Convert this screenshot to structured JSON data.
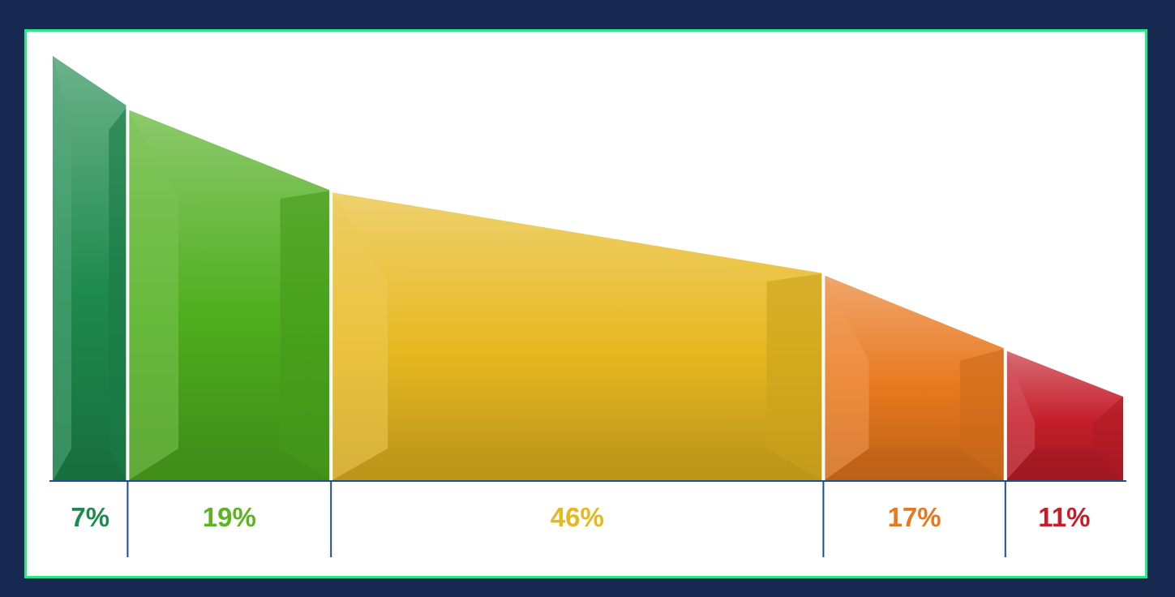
{
  "chart_data": {
    "type": "bar",
    "categories": [
      "7%",
      "19%",
      "46%",
      "17%",
      "11%"
    ],
    "values": [
      7,
      19,
      46,
      17,
      11
    ],
    "shares": [
      0.07,
      0.19,
      0.46,
      0.17,
      0.11
    ],
    "colors": [
      "#1e8a4e",
      "#4fae1e",
      "#e6b820",
      "#e8781e",
      "#c41e2a"
    ],
    "label_colors": [
      "#1e8a4e",
      "#5ab51e",
      "#e6b820",
      "#e8781e",
      "#c41e2a"
    ],
    "segment_shape": "descending profile"
  }
}
